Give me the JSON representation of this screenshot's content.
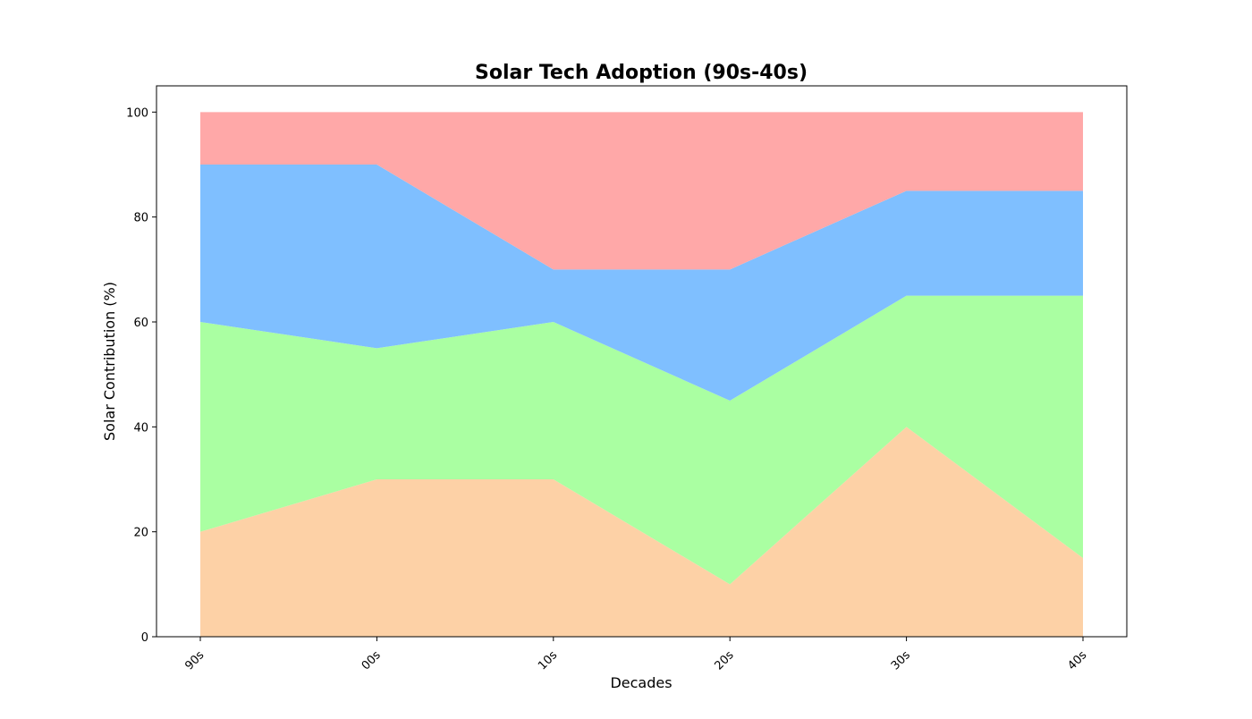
{
  "chart_data": {
    "type": "area",
    "stacked": true,
    "title": "Solar Tech Adoption (90s-40s)",
    "xlabel": "Decades",
    "ylabel": "Solar Contribution (%)",
    "categories": [
      "90s",
      "00s",
      "10s",
      "20s",
      "30s",
      "40s"
    ],
    "ylim": [
      0,
      105
    ],
    "yticks": [
      0,
      20,
      40,
      60,
      80,
      100
    ],
    "grid": false,
    "legend": "none",
    "series": [
      {
        "values": [
          20,
          30,
          30,
          10,
          40,
          15
        ],
        "color": "#fdd1a6"
      },
      {
        "values": [
          40,
          25,
          30,
          35,
          25,
          50
        ],
        "color": "#aaffa2"
      },
      {
        "values": [
          30,
          35,
          10,
          25,
          20,
          20
        ],
        "color": "#7fbfff"
      },
      {
        "values": [
          10,
          10,
          30,
          30,
          15,
          15
        ],
        "color": "#ffa8a8"
      }
    ]
  }
}
